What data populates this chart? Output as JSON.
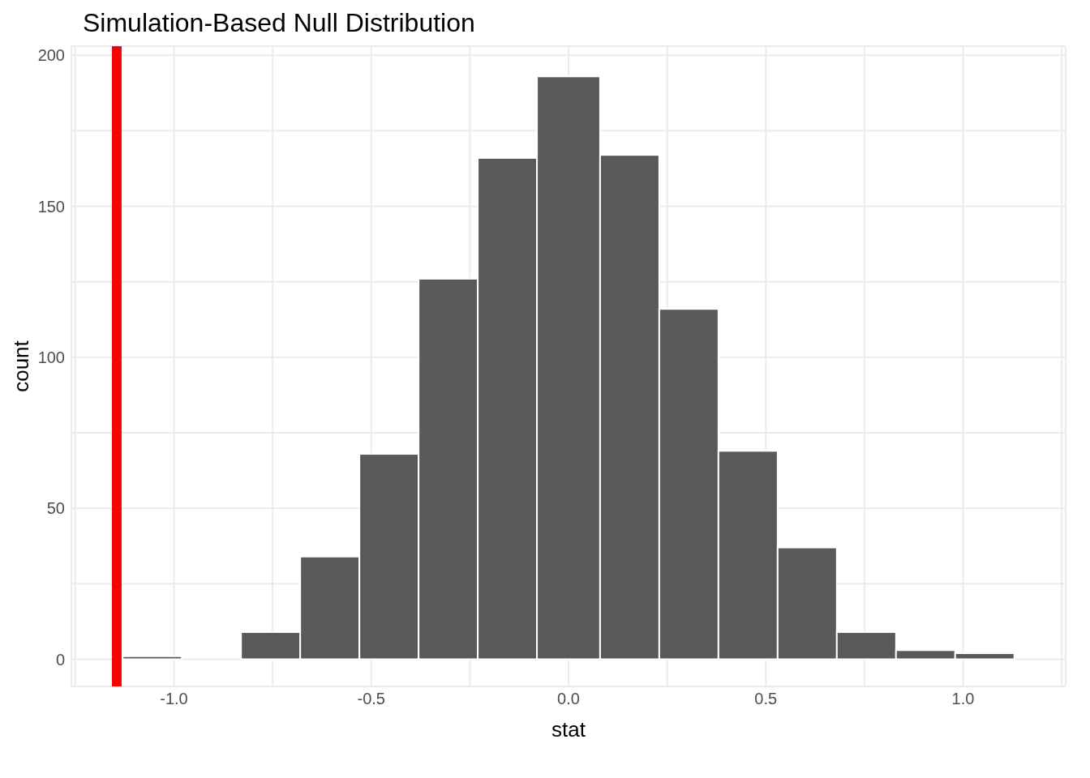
{
  "chart_data": {
    "type": "histogram",
    "title": "Simulation-Based Null Distribution",
    "xlabel": "stat",
    "ylabel": "count",
    "bins": [
      -1.13,
      -0.98,
      -0.83,
      -0.68,
      -0.53,
      -0.38,
      -0.23,
      -0.08,
      0.08,
      0.23,
      0.38,
      0.53,
      0.68,
      0.83,
      0.98,
      1.13
    ],
    "values": [
      1,
      0,
      9,
      34,
      68,
      126,
      166,
      193,
      167,
      116,
      69,
      37,
      9,
      3,
      2
    ],
    "color": "#595959",
    "xlim": [
      -1.26,
      1.26
    ],
    "xticks": [
      {
        "value": -1.25,
        "label": null
      },
      {
        "value": -1,
        "label": "-1.0"
      },
      {
        "value": -0.75,
        "label": null
      },
      {
        "value": -0.5,
        "label": "-0.5"
      },
      {
        "value": -0.25,
        "label": null
      },
      {
        "value": 0,
        "label": "0.0"
      },
      {
        "value": 0.25,
        "label": null
      },
      {
        "value": 0.5,
        "label": "0.5"
      },
      {
        "value": 0.75,
        "label": null
      },
      {
        "value": 1,
        "label": "1.0"
      },
      {
        "value": 1.25,
        "label": null
      }
    ],
    "ylim": [
      -9,
      203
    ],
    "yticks": [
      0,
      {
        "value": 25,
        "label": null
      },
      50,
      {
        "value": 75,
        "label": null
      },
      100,
      {
        "value": 125,
        "label": null
      },
      150,
      {
        "value": 175,
        "label": null
      },
      200
    ],
    "grid": true,
    "ref_lines": [
      {
        "axis": "x",
        "value": -1.145,
        "color": "#ff0000"
      }
    ]
  }
}
